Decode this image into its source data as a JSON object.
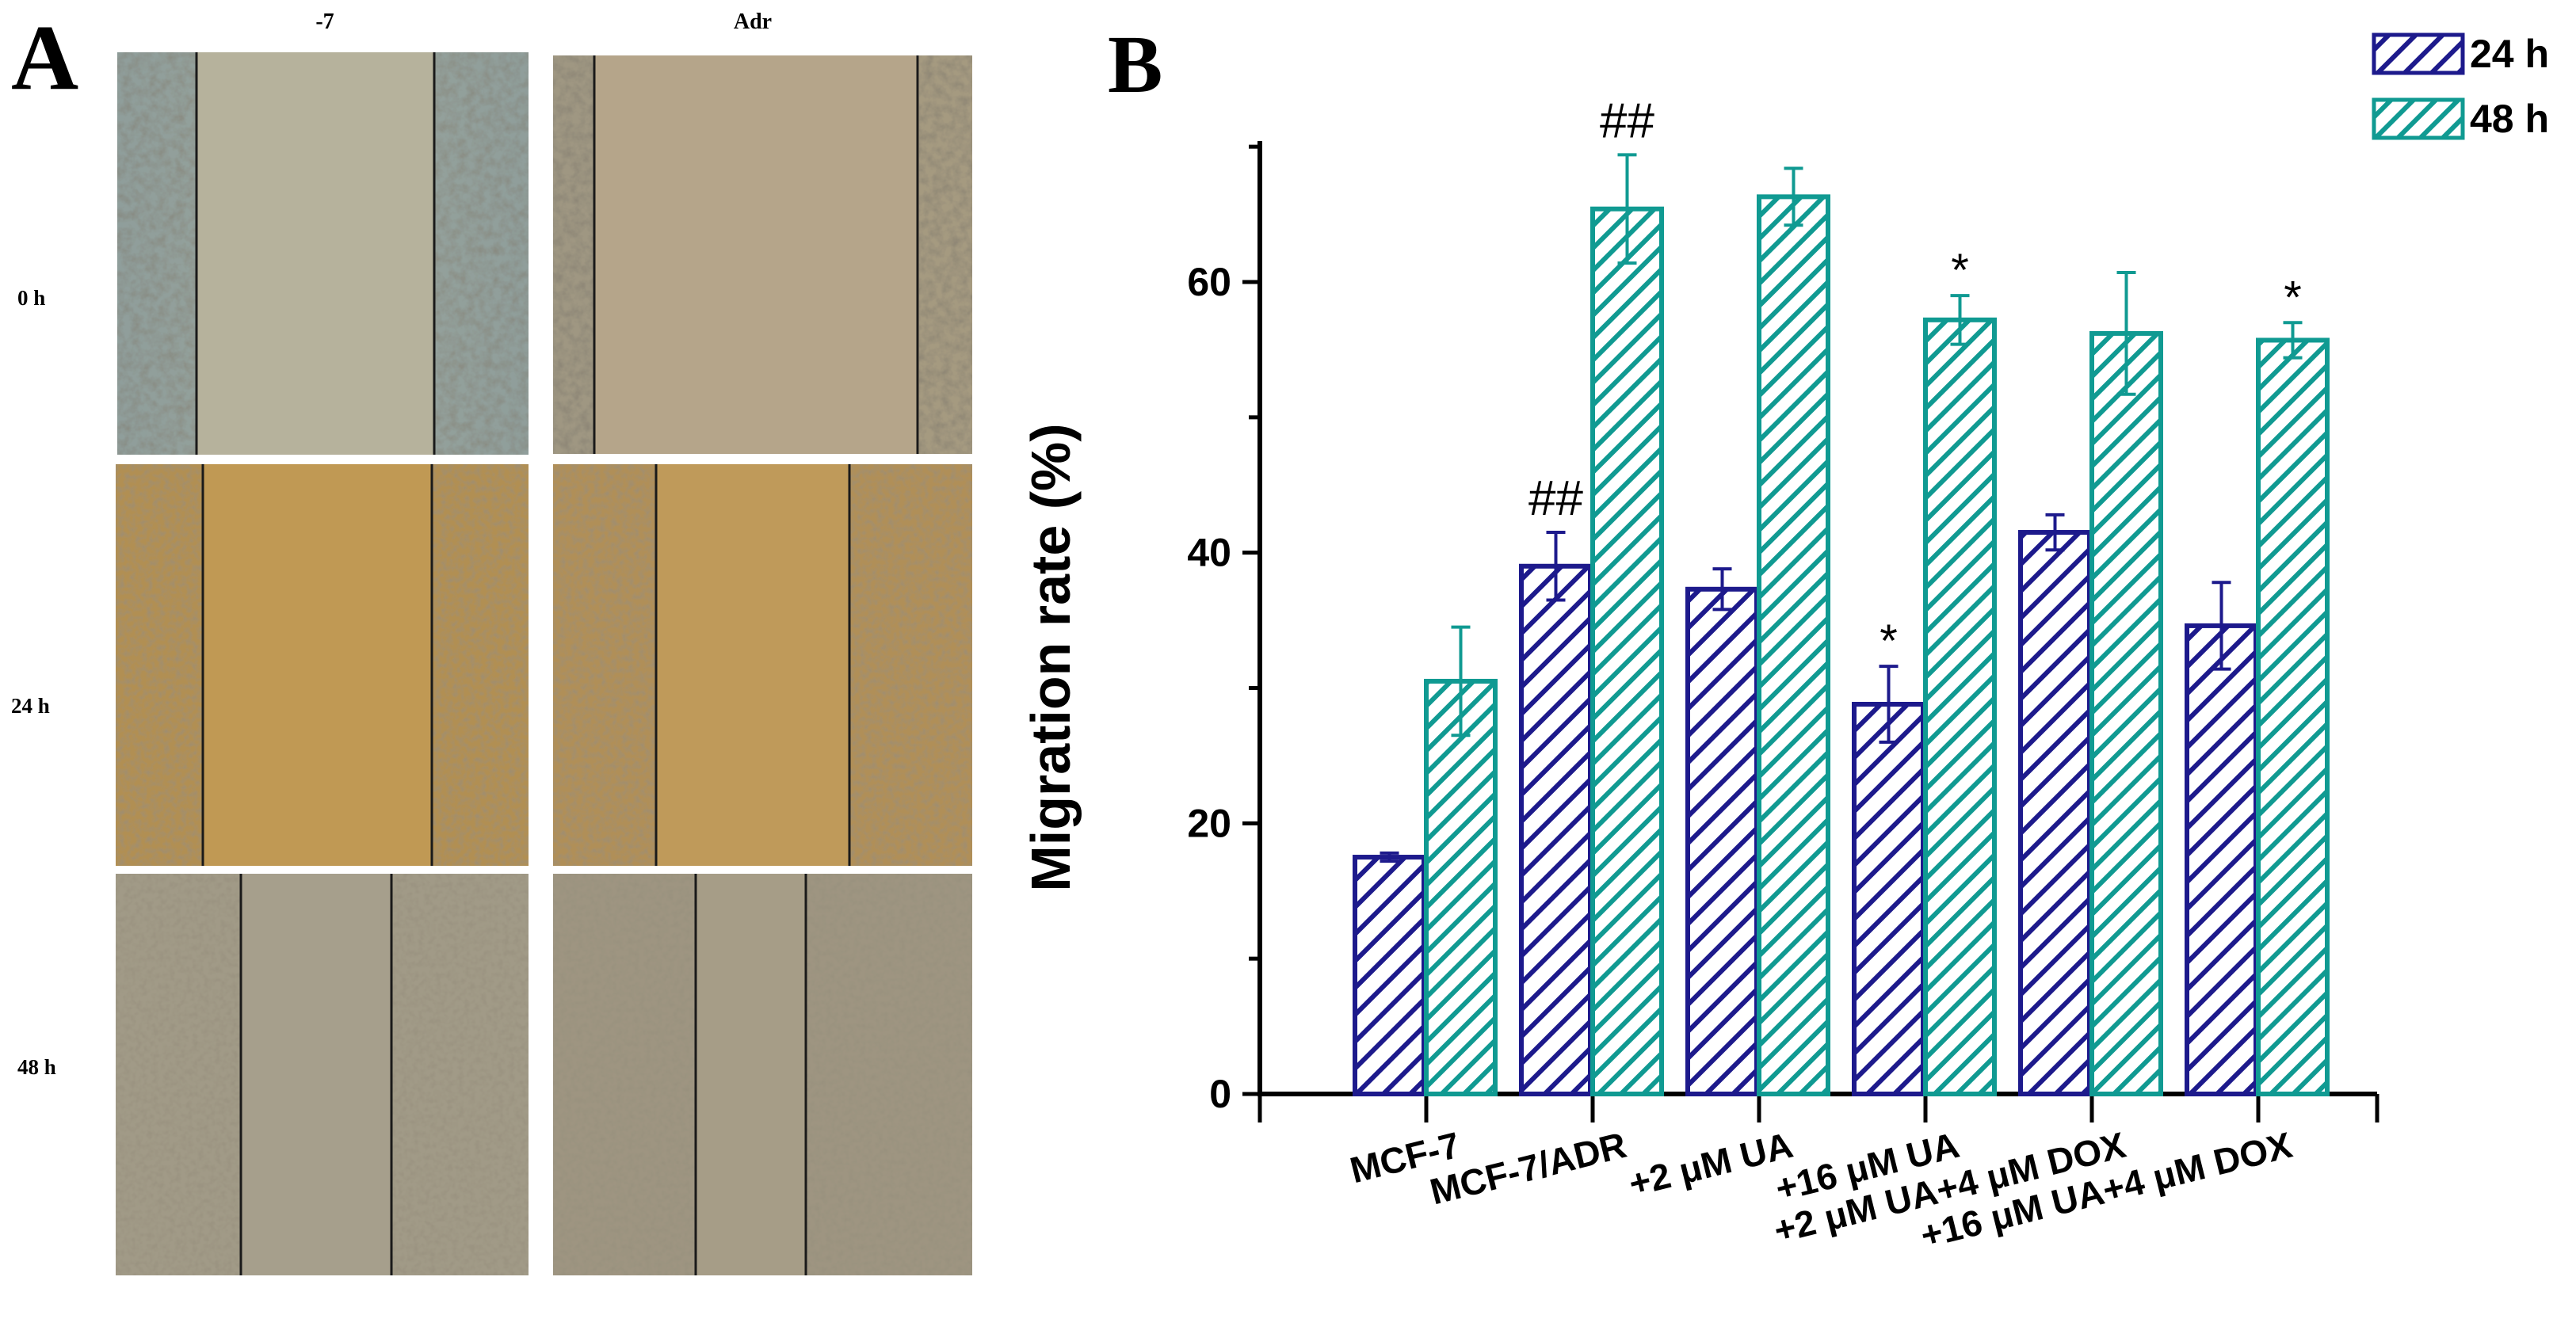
{
  "panel_a": {
    "label": "A",
    "columns": [
      "-7",
      "Adr"
    ],
    "rows": [
      "0 h",
      "24 h",
      "48 h"
    ]
  },
  "panel_b": {
    "label": "B"
  },
  "colors": {
    "series_24h": "#1d1a8c",
    "series_48h": "#109a92",
    "axis": "#000000"
  },
  "chart_data": {
    "type": "bar",
    "title": "",
    "xlabel": "",
    "ylabel": "Migration rate (%)",
    "ylim": [
      0,
      70
    ],
    "yticks": [
      0,
      20,
      40,
      60
    ],
    "ytick_labels": [
      "0",
      "20",
      "40",
      "60"
    ],
    "grid": false,
    "legend_position": "top-right",
    "categories": [
      "MCF-7",
      "MCF-7/ADR",
      "+2 μM UA",
      "+16 μM UA",
      "+2 μM UA+4 μM DOX",
      "+16 μM UA+4 μM DOX"
    ],
    "series": [
      {
        "name": "24 h",
        "values": [
          17.5,
          39.0,
          37.3,
          28.8,
          41.5,
          34.6
        ],
        "errors": [
          0.3,
          2.5,
          1.5,
          2.8,
          1.3,
          3.2
        ],
        "annotations": [
          "",
          "##",
          "",
          "*",
          "",
          ""
        ]
      },
      {
        "name": "48 h",
        "values": [
          30.5,
          65.4,
          66.3,
          57.2,
          56.2,
          55.7
        ],
        "errors": [
          4.0,
          4.0,
          2.1,
          1.8,
          4.5,
          1.3
        ],
        "annotations": [
          "",
          "##",
          "",
          "*",
          "",
          "*"
        ]
      }
    ]
  }
}
